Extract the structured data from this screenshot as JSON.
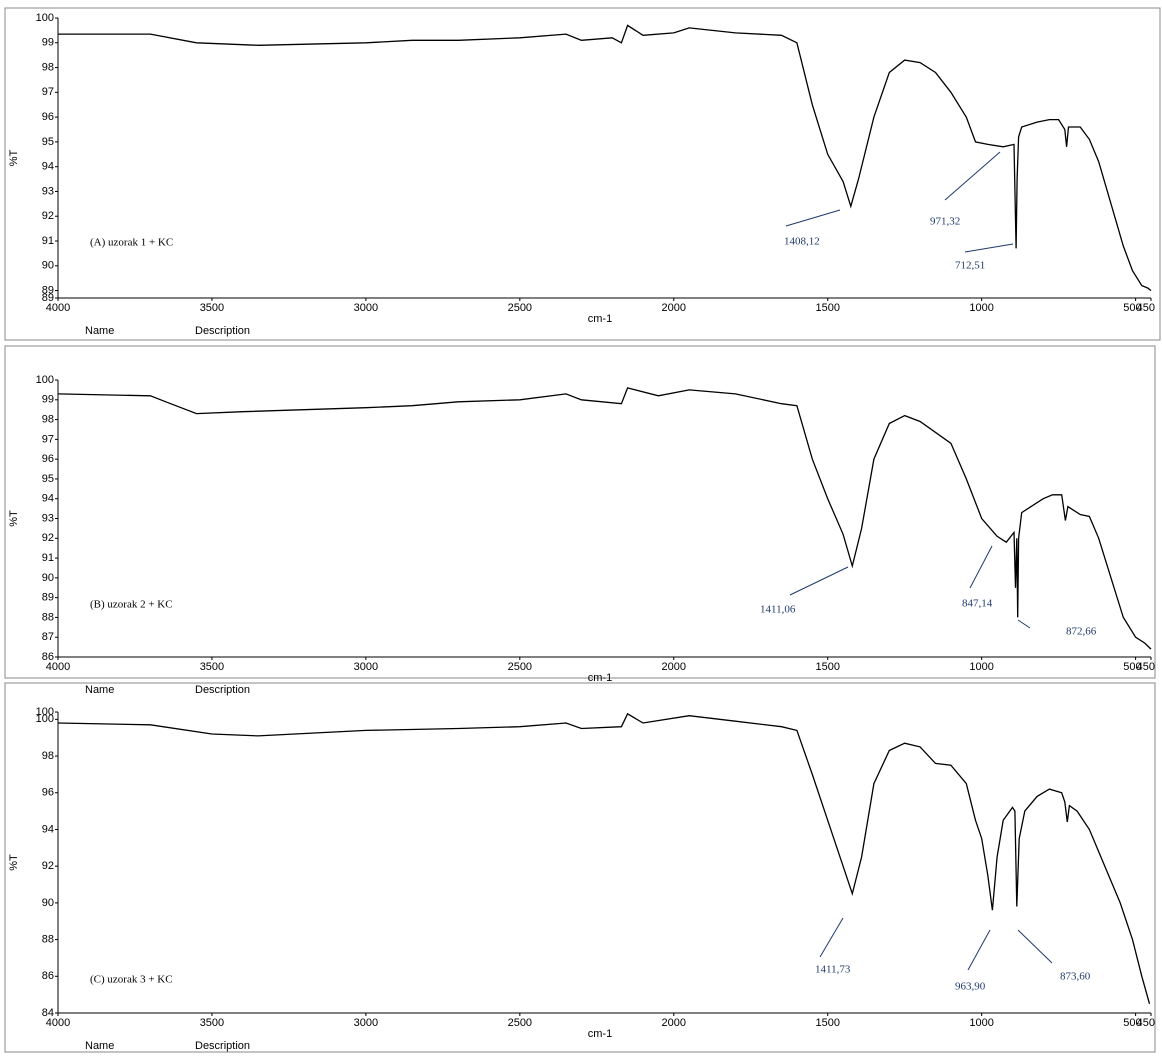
{
  "chart_data": [
    {
      "type": "line",
      "label": "(A) uzorak 1 + KC",
      "x_label": "cm-1",
      "y_label": "%T",
      "name_label": "Name",
      "description_label": "Description",
      "color": "#000000",
      "annotation_color": "#1f3a6e",
      "annotations": [
        "1408,12",
        "971,32",
        "712,51"
      ],
      "xlim": [
        4000,
        450
      ],
      "xticks": [
        4000,
        3500,
        3000,
        2500,
        2000,
        1500,
        1000,
        500,
        450
      ],
      "ylim": [
        88.7,
        100
      ],
      "yticks": [
        {
          "value": 88.7,
          "label": "89"
        },
        89,
        90,
        91,
        92,
        93,
        94,
        95,
        96,
        97,
        98,
        99,
        100
      ],
      "x": [
        4000,
        3700,
        3550,
        3350,
        3000,
        2850,
        2700,
        2500,
        2350,
        2300,
        2200,
        2170,
        2150,
        2100,
        2000,
        1950,
        1800,
        1650,
        1600,
        1550,
        1500,
        1450,
        1425,
        1400,
        1350,
        1300,
        1250,
        1200,
        1150,
        1100,
        1050,
        1020,
        980,
        930,
        895,
        888,
        885,
        880,
        870,
        820,
        780,
        750,
        730,
        724,
        718,
        680,
        650,
        620,
        580,
        540,
        510,
        480,
        460,
        450
      ],
      "values": [
        99.35,
        99.35,
        99.0,
        98.9,
        99.0,
        99.1,
        99.1,
        99.2,
        99.35,
        99.1,
        99.2,
        99.0,
        99.7,
        99.3,
        99.4,
        99.6,
        99.4,
        99.3,
        99.0,
        96.5,
        94.5,
        93.4,
        92.4,
        93.5,
        96.0,
        97.8,
        98.3,
        98.2,
        97.8,
        97.0,
        96.0,
        95.0,
        94.9,
        94.8,
        94.9,
        90.7,
        93.5,
        95.2,
        95.6,
        95.8,
        95.9,
        95.9,
        95.5,
        94.8,
        95.6,
        95.6,
        95.1,
        94.2,
        92.5,
        90.8,
        89.8,
        89.2,
        89.1,
        89.0
      ]
    },
    {
      "type": "line",
      "label": "(B) uzorak 2 + KC",
      "x_label": "cm-1",
      "y_label": "%T",
      "name_label": "Name",
      "description_label": "Description",
      "color": "#000000",
      "annotation_color": "#1f3a6e",
      "annotations": [
        "1411,06",
        "847,14",
        "872,66"
      ],
      "xlim": [
        4000,
        450
      ],
      "xticks": [
        4000,
        3500,
        3000,
        2500,
        2000,
        1500,
        1000,
        500,
        450
      ],
      "ylim": [
        86,
        100
      ],
      "yticks": [
        86,
        87,
        88,
        89,
        90,
        91,
        92,
        93,
        94,
        95,
        96,
        97,
        98,
        99,
        100
      ],
      "x": [
        4000,
        3700,
        3650,
        3550,
        3400,
        3000,
        2850,
        2700,
        2500,
        2350,
        2300,
        2170,
        2150,
        2050,
        1950,
        1800,
        1650,
        1600,
        1550,
        1500,
        1450,
        1420,
        1390,
        1350,
        1300,
        1250,
        1200,
        1100,
        1050,
        1000,
        950,
        920,
        895,
        890,
        886,
        883,
        880,
        870,
        800,
        770,
        740,
        728,
        720,
        680,
        650,
        620,
        580,
        540,
        500,
        470,
        450
      ],
      "values": [
        99.3,
        99.2,
        98.9,
        98.3,
        98.4,
        98.6,
        98.7,
        98.9,
        99.0,
        99.3,
        99.0,
        98.8,
        99.6,
        99.2,
        99.5,
        99.3,
        98.8,
        98.7,
        96.0,
        94.0,
        92.2,
        90.6,
        92.5,
        96.0,
        97.8,
        98.2,
        97.9,
        96.8,
        95.0,
        93.0,
        92.1,
        91.8,
        92.3,
        89.5,
        92.0,
        88.0,
        92.0,
        93.3,
        94.0,
        94.2,
        94.2,
        92.9,
        93.6,
        93.2,
        93.1,
        92.0,
        90.0,
        88.0,
        87.0,
        86.7,
        86.4
      ]
    },
    {
      "type": "line",
      "label": "(C) uzorak 3 + KC",
      "x_label": "cm-1",
      "y_label": "%T",
      "name_label": "Name",
      "description_label": "Description",
      "color": "#000000",
      "annotation_color": "#1f3a6e",
      "annotations": [
        "1411,73",
        "963,90",
        "873,60"
      ],
      "xlim": [
        4000,
        450
      ],
      "xticks": [
        4000,
        3500,
        3000,
        2500,
        2000,
        1500,
        1000,
        500,
        450
      ],
      "ylim": [
        84,
        100.4
      ],
      "yticks": [
        84,
        86,
        88,
        90,
        92,
        94,
        96,
        98,
        100,
        {
          "value": 100.4,
          "label": "100"
        }
      ],
      "x": [
        4000,
        3700,
        3500,
        3350,
        3000,
        2700,
        2500,
        2350,
        2300,
        2170,
        2150,
        2100,
        1950,
        1800,
        1650,
        1600,
        1550,
        1500,
        1450,
        1420,
        1390,
        1350,
        1300,
        1250,
        1200,
        1150,
        1100,
        1050,
        1020,
        1000,
        980,
        965,
        950,
        930,
        900,
        892,
        886,
        878,
        860,
        820,
        780,
        740,
        730,
        722,
        715,
        690,
        650,
        600,
        550,
        510,
        480,
        455
      ],
      "values": [
        99.8,
        99.7,
        99.2,
        99.1,
        99.4,
        99.5,
        99.6,
        99.8,
        99.5,
        99.6,
        100.3,
        99.8,
        100.2,
        99.9,
        99.6,
        99.4,
        97.0,
        94.5,
        92.0,
        90.5,
        92.5,
        96.5,
        98.3,
        98.7,
        98.5,
        97.6,
        97.5,
        96.5,
        94.5,
        93.5,
        91.5,
        89.6,
        92.5,
        94.5,
        95.2,
        95.0,
        89.8,
        93.5,
        95.0,
        95.8,
        96.2,
        96.0,
        95.5,
        94.4,
        95.3,
        95.0,
        94.0,
        92.0,
        90.0,
        88.0,
        86.0,
        84.5
      ]
    }
  ]
}
